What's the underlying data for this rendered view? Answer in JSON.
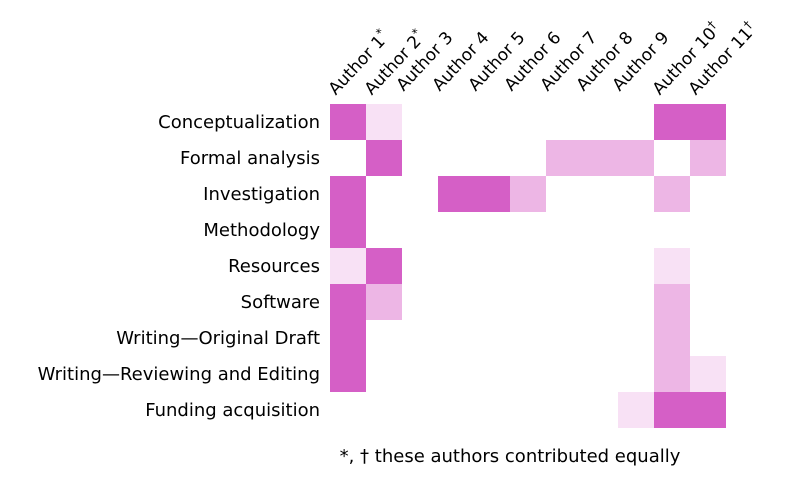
{
  "chart_data": {
    "type": "heatmap",
    "title": "",
    "columns": [
      "Author 1*",
      "Author 2*",
      "Author 3",
      "Author 4",
      "Author 5",
      "Author 6",
      "Author 7",
      "Author 8",
      "Author 9",
      "Author 10†",
      "Author 11†"
    ],
    "rows": [
      "Conceptualization",
      "Formal analysis",
      "Investigation",
      "Methodology",
      "Resources",
      "Software",
      "Writing—Original Draft",
      "Writing—Reviewing and Editing",
      "Funding acquisition"
    ],
    "values": [
      [
        3,
        1,
        0,
        0,
        0,
        0,
        0,
        0,
        0,
        3,
        3
      ],
      [
        0,
        3,
        0,
        0,
        0,
        0,
        2,
        2,
        2,
        0,
        2
      ],
      [
        3,
        0,
        0,
        3,
        3,
        2,
        0,
        0,
        0,
        2,
        0
      ],
      [
        3,
        0,
        0,
        0,
        0,
        0,
        0,
        0,
        0,
        0,
        0
      ],
      [
        1,
        3,
        0,
        0,
        0,
        0,
        0,
        0,
        0,
        1,
        0
      ],
      [
        3,
        2,
        0,
        0,
        0,
        0,
        0,
        0,
        0,
        2,
        0
      ],
      [
        3,
        0,
        0,
        0,
        0,
        0,
        0,
        0,
        0,
        2,
        0
      ],
      [
        3,
        0,
        0,
        0,
        0,
        0,
        0,
        0,
        0,
        2,
        1
      ],
      [
        0,
        0,
        0,
        0,
        0,
        0,
        0,
        0,
        1,
        3,
        3
      ]
    ],
    "colors": {
      "0": "#ffffff",
      "1": "#f8e1f5",
      "2": "#edb6e5",
      "3": "#d55fc6"
    },
    "caption": "*, † these authors contributed equally"
  }
}
